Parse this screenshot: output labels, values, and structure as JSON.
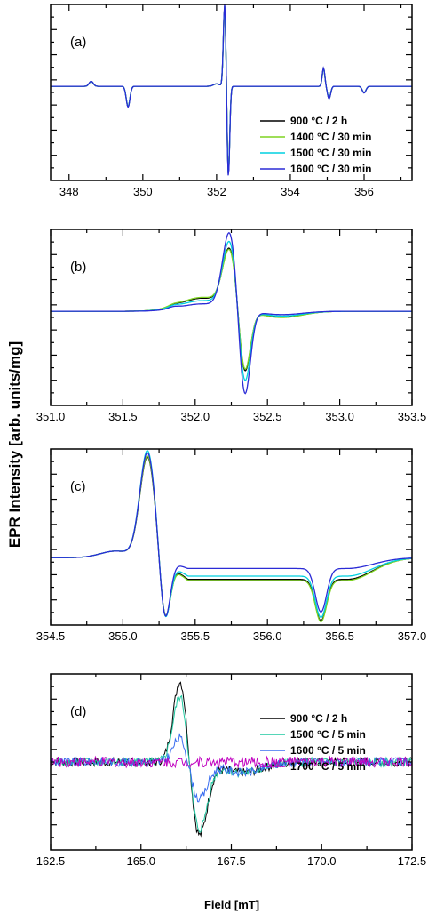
{
  "figure": {
    "ylabel": "EPR Intensity [arb. units/mg]",
    "xlabel": "Field [mT]"
  },
  "chart_data": [
    {
      "type": "line",
      "panel": "(a)",
      "xlim": [
        347.5,
        357.3
      ],
      "ylim": [
        -1.15,
        1.0
      ],
      "xticks": [
        "348",
        "350",
        "352",
        "354",
        "356"
      ],
      "xtick_values": [
        348,
        350,
        352,
        354,
        356
      ],
      "legend": "right",
      "series": [
        {
          "name": "900 °C / 2 h",
          "color": "#000000"
        },
        {
          "name": "1400 °C / 30 min",
          "color": "#7ed321"
        },
        {
          "name": "1500 °C / 30 min",
          "color": "#00d0e0"
        },
        {
          "name": "1600 °C / 30 min",
          "color": "#2b2bd6"
        }
      ],
      "features": [
        {
          "x": 348.6,
          "pos": 0.06,
          "neg": 0.0,
          "w": 0.08
        },
        {
          "x": 349.6,
          "pos": 0.0,
          "neg": -0.25,
          "w": 0.07
        },
        {
          "x": 352.22,
          "pos": 1.0,
          "neg": 0.0,
          "w": 0.05
        },
        {
          "x": 352.32,
          "pos": 0.0,
          "neg": -1.1,
          "w": 0.05
        },
        {
          "x": 354.9,
          "pos": 0.22,
          "neg": 0.0,
          "w": 0.05
        },
        {
          "x": 355.05,
          "pos": 0.0,
          "neg": -0.15,
          "w": 0.06
        },
        {
          "x": 356.0,
          "pos": 0.0,
          "neg": -0.08,
          "w": 0.07
        }
      ]
    },
    {
      "type": "line",
      "panel": "(b)",
      "xlim": [
        351.0,
        353.5
      ],
      "ylim": [
        -1.15,
        1.0
      ],
      "xticks": [
        "351.0",
        "351.5",
        "352.0",
        "352.5",
        "353.0",
        "353.5"
      ],
      "xtick_values": [
        351.0,
        351.5,
        352.0,
        352.5,
        353.0,
        353.5
      ],
      "series": [
        {
          "name": "900 °C / 2 h",
          "color": "#000000",
          "pos": 0.72,
          "neg": -0.82,
          "shoulder": 0.16
        },
        {
          "name": "1400 °C / 30 min",
          "color": "#7ed321",
          "pos": 0.7,
          "neg": -0.8,
          "shoulder": 0.17
        },
        {
          "name": "1500 °C / 30 min",
          "color": "#00d0e0",
          "pos": 0.82,
          "neg": -0.95,
          "shoulder": 0.13
        },
        {
          "name": "1600 °C / 30 min",
          "color": "#2b2bd6",
          "pos": 0.95,
          "neg": -1.12,
          "shoulder": 0.09
        }
      ]
    },
    {
      "type": "line",
      "panel": "(c)",
      "xlim": [
        354.5,
        357.0
      ],
      "ylim": [
        -0.62,
        1.0
      ],
      "xticks": [
        "354.5",
        "355.0",
        "355.5",
        "356.0",
        "356.5",
        "357.0"
      ],
      "xtick_values": [
        354.5,
        355.0,
        355.5,
        356.0,
        356.5,
        357.0
      ],
      "series": [
        {
          "name": "900 °C / 2 h",
          "color": "#000000",
          "pos": 0.92,
          "neg": -0.55,
          "mid": -0.2,
          "dip": -0.58
        },
        {
          "name": "1400 °C / 30 min",
          "color": "#7ed321",
          "pos": 0.93,
          "neg": -0.55,
          "mid": -0.21,
          "dip": -0.59
        },
        {
          "name": "1500 °C / 30 min",
          "color": "#00d0e0",
          "pos": 0.98,
          "neg": -0.57,
          "mid": -0.17,
          "dip": -0.55
        },
        {
          "name": "1600 °C / 30 min",
          "color": "#2b2bd6",
          "pos": 0.96,
          "neg": -0.58,
          "mid": -0.1,
          "dip": -0.5
        }
      ]
    },
    {
      "type": "line",
      "panel": "(d)",
      "xlim": [
        162.5,
        172.5
      ],
      "ylim": [
        -1.0,
        1.0
      ],
      "xticks": [
        "162.5",
        "165.0",
        "167.5",
        "170.0",
        "172.5"
      ],
      "xtick_values": [
        162.5,
        165.0,
        167.5,
        170.0,
        172.5
      ],
      "legend": "right",
      "series": [
        {
          "name": "900 °C / 2 h",
          "color": "#000000",
          "pos": 0.98,
          "neg": -0.85,
          "noise": 0.05
        },
        {
          "name": "1500 °C / 5 min",
          "color": "#1ec8a0",
          "pos": 0.8,
          "neg": -0.78,
          "noise": 0.05
        },
        {
          "name": "1600 °C / 5 min",
          "color": "#3a6ef0",
          "pos": 0.3,
          "neg": -0.42,
          "noise": 0.05
        },
        {
          "name": "1700 °C / 5 min",
          "color": "#c000c0",
          "pos": 0.0,
          "neg": 0.0,
          "noise": 0.06
        }
      ]
    }
  ]
}
